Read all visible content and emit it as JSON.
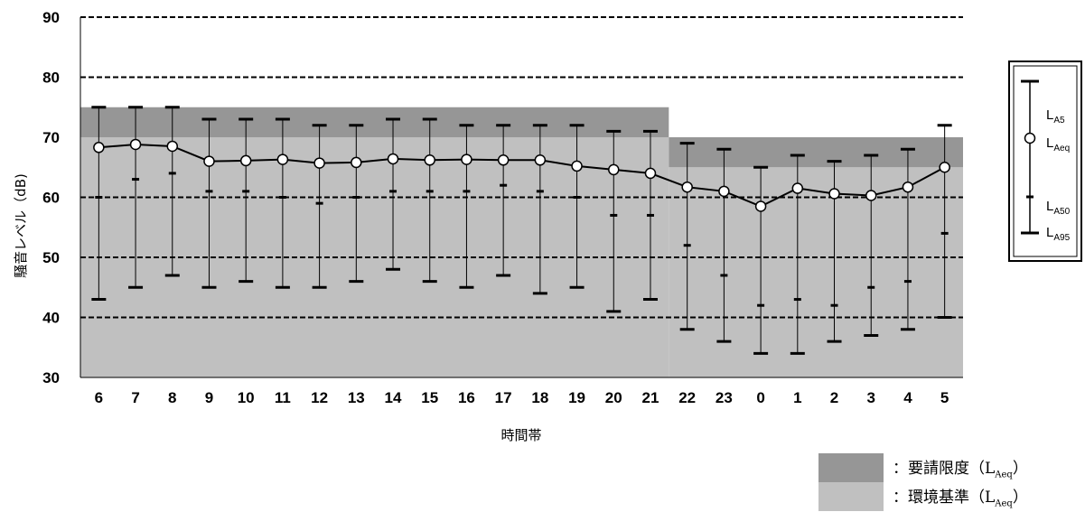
{
  "chart_data": {
    "type": "line",
    "ylabel": "騒音レベル（dB)",
    "xlabel": "時間帯",
    "categories": [
      "6",
      "7",
      "8",
      "9",
      "10",
      "11",
      "12",
      "13",
      "14",
      "15",
      "16",
      "17",
      "18",
      "19",
      "20",
      "21",
      "22",
      "23",
      "0",
      "1",
      "2",
      "3",
      "4",
      "5"
    ],
    "ylim": [
      30,
      90
    ],
    "yticks": [
      "30",
      "40",
      "50",
      "60",
      "70",
      "80",
      "90"
    ],
    "dashed_gridlines": [
      40,
      50,
      60,
      80,
      90
    ],
    "series": [
      {
        "name": "LAeq",
        "values": [
          68.3,
          68.8,
          68.5,
          66.0,
          66.1,
          66.3,
          65.7,
          65.8,
          66.4,
          66.2,
          66.3,
          66.2,
          66.2,
          65.2,
          64.6,
          64.0,
          61.7,
          61.0,
          58.5,
          61.5,
          60.6,
          60.3,
          61.7,
          65.0
        ]
      },
      {
        "name": "LA5",
        "values": [
          75,
          75,
          75,
          73,
          73,
          73,
          72,
          72,
          73,
          73,
          72,
          72,
          72,
          72,
          71,
          71,
          69,
          68,
          65,
          67,
          66,
          67,
          68,
          72
        ]
      },
      {
        "name": "LA50",
        "values": [
          60,
          63,
          64,
          61,
          61,
          60,
          59,
          60,
          61,
          61,
          61,
          62,
          61,
          60,
          57,
          57,
          52,
          47,
          42,
          43,
          42,
          45,
          46,
          54
        ]
      },
      {
        "name": "LA95",
        "values": [
          43,
          45,
          47,
          45,
          46,
          45,
          45,
          46,
          48,
          46,
          45,
          47,
          44,
          45,
          41,
          43,
          38,
          36,
          34,
          34,
          36,
          37,
          38,
          40
        ]
      }
    ],
    "bands": [
      {
        "name": "要請限度",
        "sub": "Aeq",
        "day": 75,
        "night": 70,
        "color": "#969696"
      },
      {
        "name": "環境基準",
        "sub": "Aeq",
        "day": 70,
        "night": 65,
        "color": "#c0c0c0"
      }
    ],
    "legend": {
      "placement": "right",
      "items": [
        {
          "main": "L",
          "sub": "A5"
        },
        {
          "main": "L",
          "sub": "Aeq"
        },
        {
          "main": "L",
          "sub": "A50"
        },
        {
          "main": "L",
          "sub": "A95"
        }
      ]
    },
    "bottom_legend": [
      {
        "prefix": "：",
        "label": "要請限度",
        "open": "（L",
        "sub": "Aeq",
        "close": "）",
        "color": "#969696"
      },
      {
        "prefix": "：",
        "label": "環境基準",
        "open": "（L",
        "sub": "Aeq",
        "close": "）",
        "color": "#c0c0c0"
      }
    ]
  }
}
